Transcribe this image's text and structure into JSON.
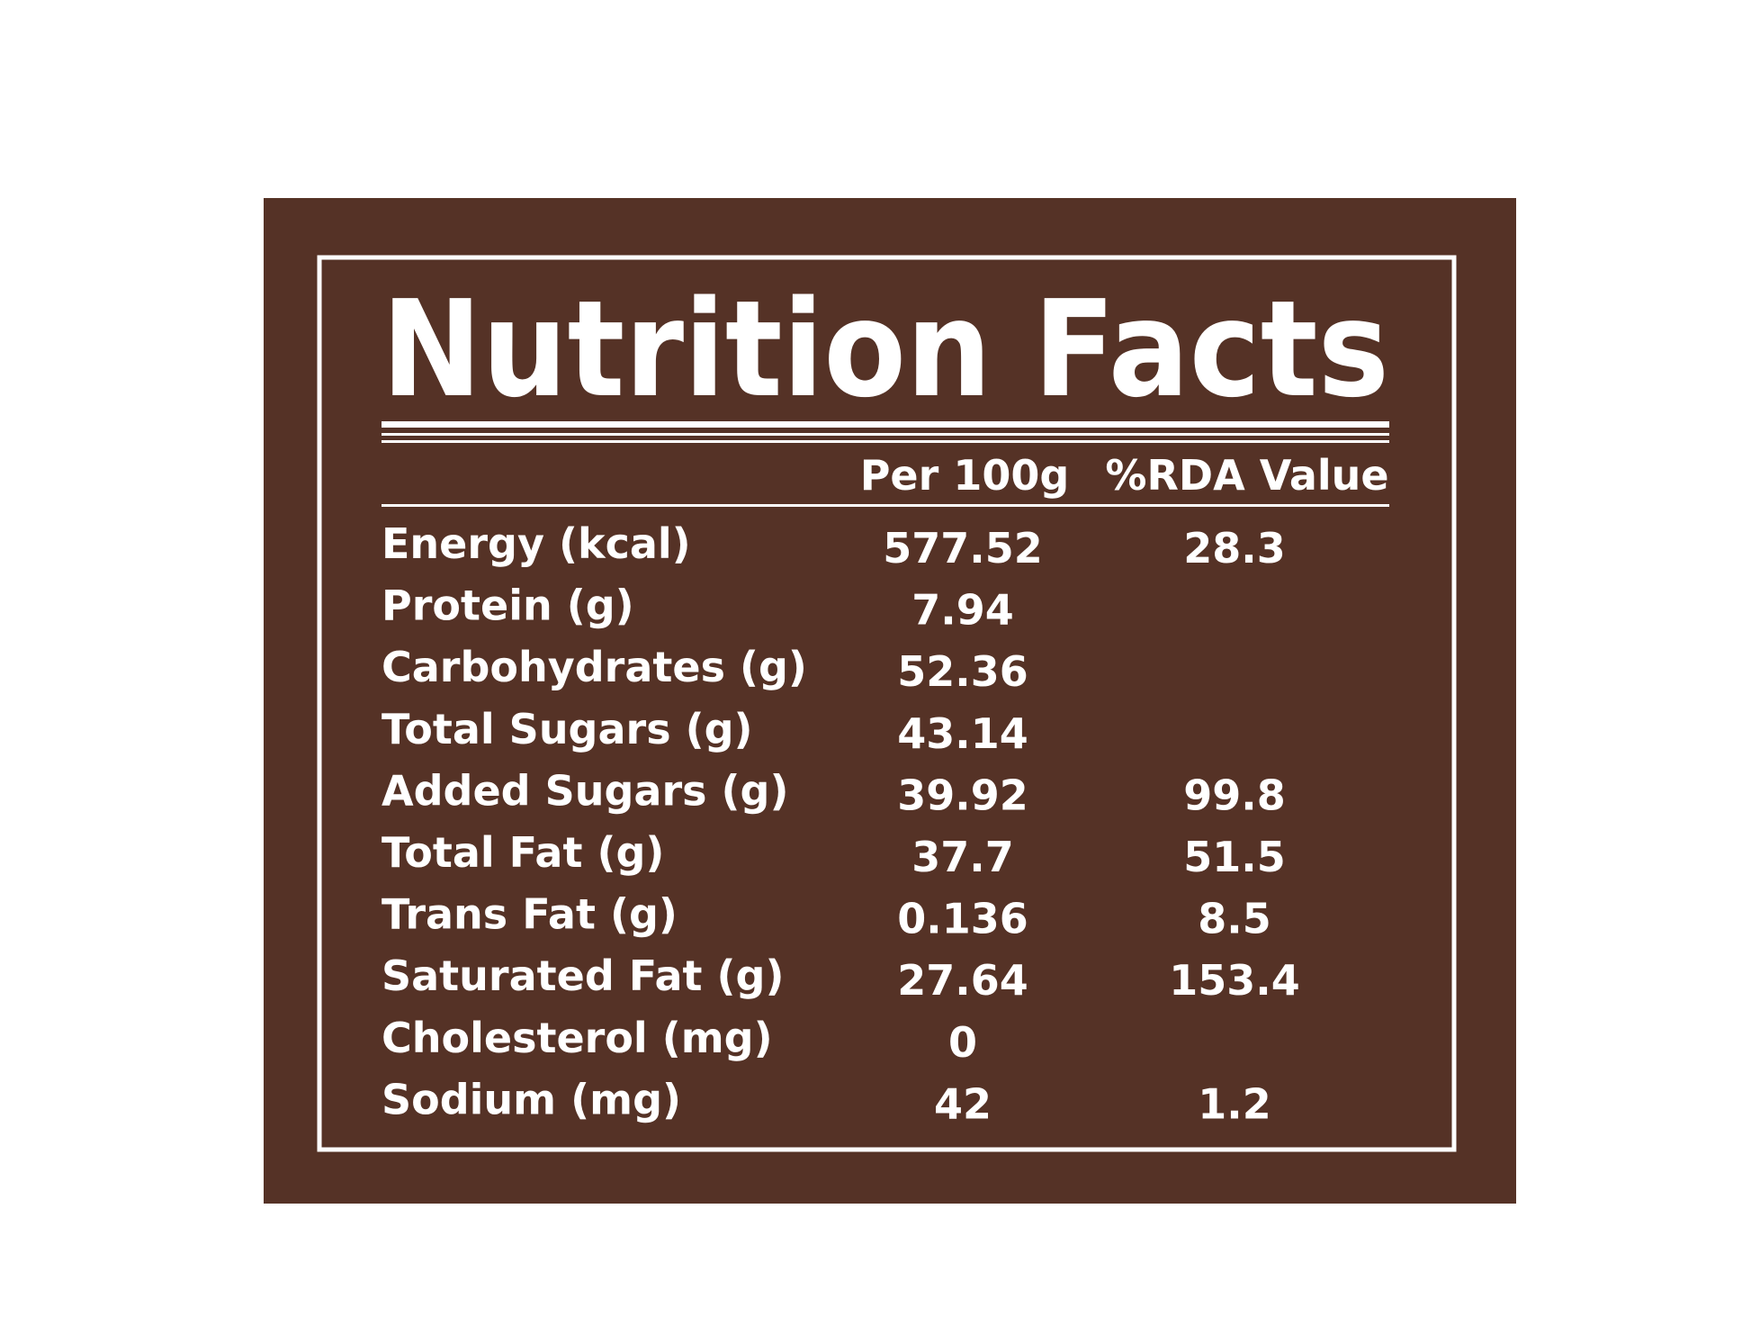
{
  "header": {
    "title": "Nutrition Facts"
  },
  "table": {
    "columns": [
      "Per 100g",
      "%RDA Value"
    ],
    "rows": [
      [
        "Energy (kcal)",
        "577.52",
        "28.3"
      ],
      [
        "Protein (g)",
        "7.94",
        null
      ],
      [
        "Carbohydrates (g)",
        "52.36",
        null
      ],
      [
        "Total Sugars (g)",
        "43.14",
        null
      ],
      [
        "Added Sugars (g)",
        "39.92",
        "99.8"
      ],
      [
        "Total Fat (g)",
        "37.7",
        "51.5"
      ],
      [
        "Trans Fat (g)",
        "0.136",
        "8.5"
      ],
      [
        "Saturated Fat (g)",
        "27.64",
        "153.4"
      ],
      [
        "Cholesterol (mg)",
        "0",
        null
      ],
      [
        "Sodium (mg)",
        "42",
        "1.2"
      ]
    ]
  }
}
